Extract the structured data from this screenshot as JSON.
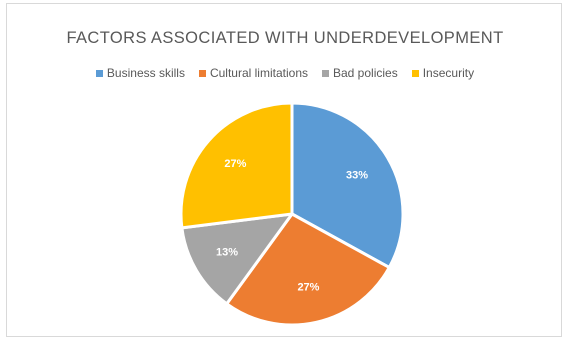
{
  "chart_data": {
    "type": "pie",
    "title": "FACTORS ASSOCIATED WITH UNDERDEVELOPMENT",
    "categories": [
      "Business skills",
      "Cultural limitations",
      "Bad policies",
      "Insecurity"
    ],
    "values": [
      33,
      27,
      13,
      27
    ],
    "labels": [
      "33%",
      "27%",
      "13%",
      "27%"
    ],
    "colors": [
      "#5b9bd5",
      "#ed7d31",
      "#a5a5a5",
      "#ffc000"
    ],
    "legend_position": "top"
  }
}
